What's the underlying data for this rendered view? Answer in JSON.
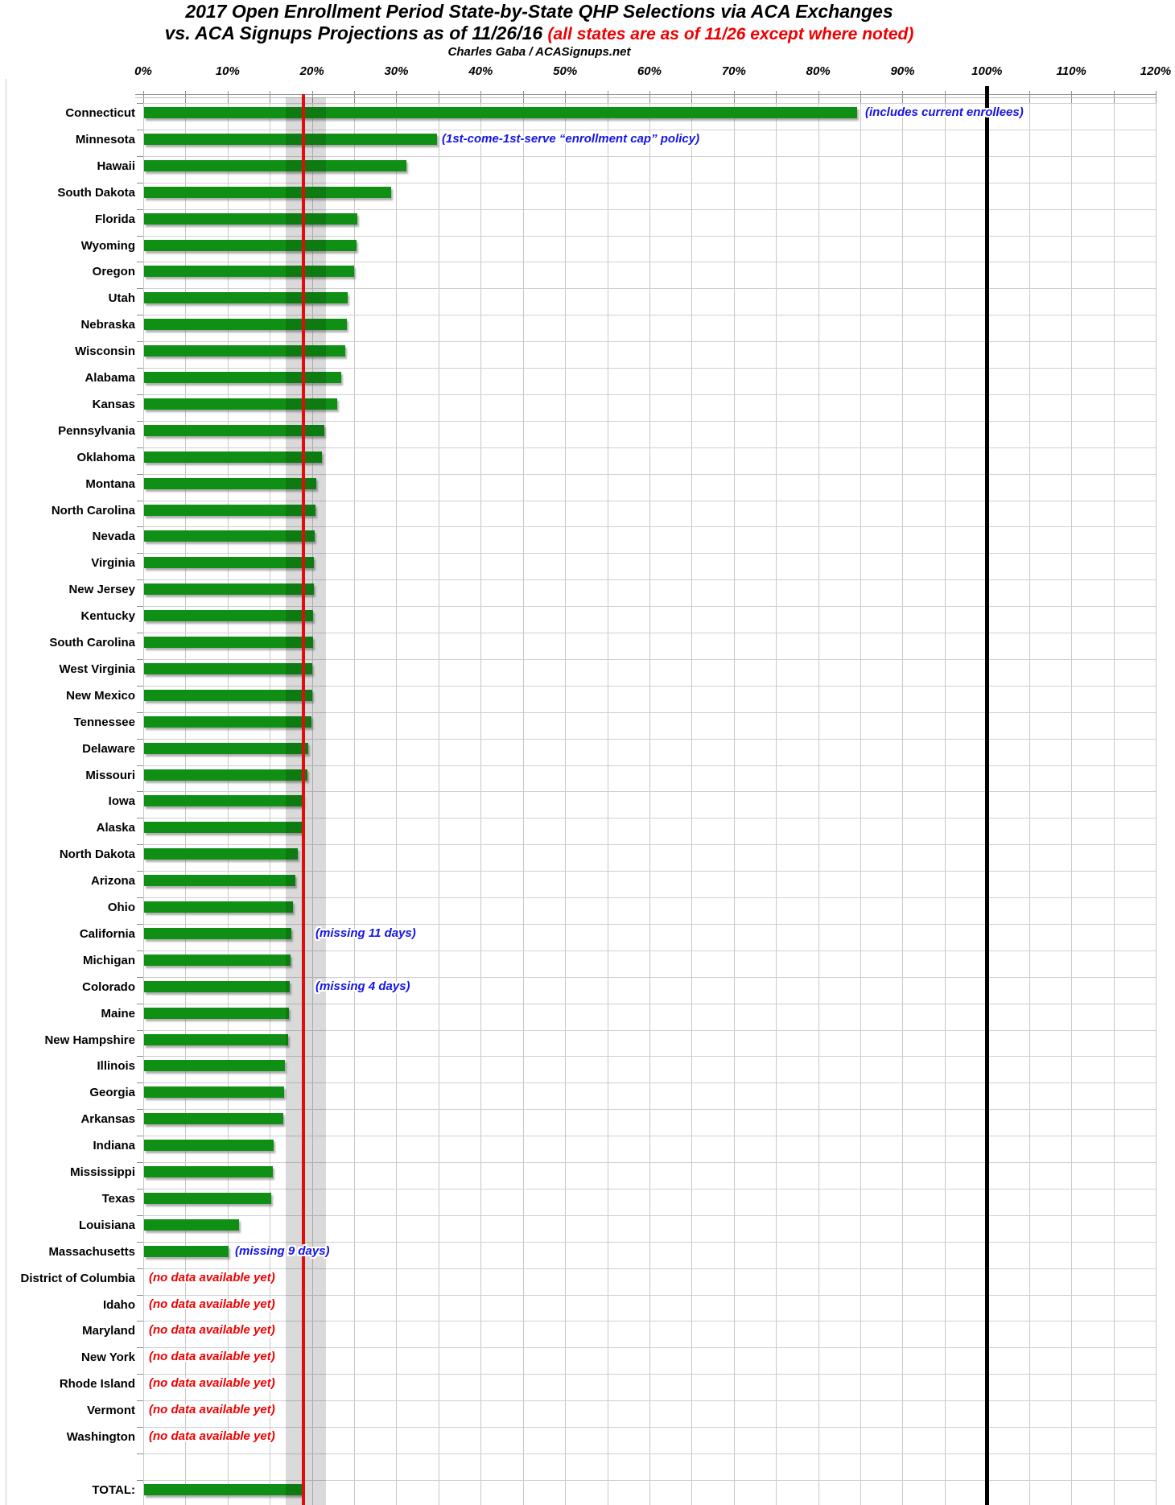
{
  "title": {
    "line1": "2017 Open Enrollment Period State-by-State QHP Selections via ACA Exchanges",
    "line2_black": "vs. ACA Signups Projections as of 11/26/16 ",
    "line2_red": "(all states are as of 11/26 except where noted)",
    "byline": "Charles Gaba / ACASignups.net"
  },
  "axis": {
    "tick_labels": [
      "0%",
      "10%",
      "20%",
      "30%",
      "40%",
      "50%",
      "60%",
      "70%",
      "80%",
      "90%",
      "100%",
      "110%",
      "120%"
    ],
    "min_pct": 0,
    "max_pct": 120,
    "label_step_pct": 10,
    "gridline_step_pct": 5
  },
  "colors": {
    "bar_green": "#0f9014",
    "projection_line_red": "#e00d0d",
    "hundred_line_black": "#000000",
    "band_gray": "#dadada",
    "annotation_blue": "#1414e6",
    "annotation_red": "#ee0000",
    "title_red": "#ee0000",
    "grid_gray": "#c8c8c8"
  },
  "chart_data": {
    "type": "bar",
    "orientation": "horizontal",
    "value_unit": "percent of projection",
    "xlim": [
      0,
      120
    ],
    "grid": true,
    "reference_lines": {
      "projection_average_pct": 19.0,
      "full_projection_pct": 100
    },
    "projection_band_pct": [
      16.9,
      21.7
    ],
    "no_data_text": "(no data available yet)",
    "rows": [
      {
        "state": "Connecticut",
        "pct": 84.5,
        "note": "(includes current enrollees)",
        "note_color": "blue",
        "note_x_pct": 85.6
      },
      {
        "state": "Minnesota",
        "pct": 34.7,
        "note": "(1st-come-1st-serve “enrollment cap” policy)",
        "note_color": "blue",
        "note_x_pct": 35.4
      },
      {
        "state": "Hawaii",
        "pct": 31.1
      },
      {
        "state": "South Dakota",
        "pct": 29.3
      },
      {
        "state": "Florida",
        "pct": 25.3
      },
      {
        "state": "Wyoming",
        "pct": 25.2
      },
      {
        "state": "Oregon",
        "pct": 24.9
      },
      {
        "state": "Utah",
        "pct": 24.1
      },
      {
        "state": "Nebraska",
        "pct": 24.0
      },
      {
        "state": "Wisconsin",
        "pct": 23.8
      },
      {
        "state": "Alabama",
        "pct": 23.4
      },
      {
        "state": "Kansas",
        "pct": 22.9
      },
      {
        "state": "Pennsylvania",
        "pct": 21.4
      },
      {
        "state": "Oklahoma",
        "pct": 21.1
      },
      {
        "state": "Montana",
        "pct": 20.4
      },
      {
        "state": "North Carolina",
        "pct": 20.3
      },
      {
        "state": "Nevada",
        "pct": 20.2
      },
      {
        "state": "Virginia",
        "pct": 20.1
      },
      {
        "state": "New Jersey",
        "pct": 20.1
      },
      {
        "state": "Kentucky",
        "pct": 20.0
      },
      {
        "state": "South Carolina",
        "pct": 20.0
      },
      {
        "state": "West Virginia",
        "pct": 19.9
      },
      {
        "state": "New Mexico",
        "pct": 19.9
      },
      {
        "state": "Tennessee",
        "pct": 19.8
      },
      {
        "state": "Delaware",
        "pct": 19.5
      },
      {
        "state": "Missouri",
        "pct": 19.4
      },
      {
        "state": "Iowa",
        "pct": 18.9
      },
      {
        "state": "Alaska",
        "pct": 18.7
      },
      {
        "state": "North Dakota",
        "pct": 18.2
      },
      {
        "state": "Arizona",
        "pct": 17.9
      },
      {
        "state": "Ohio",
        "pct": 17.6
      },
      {
        "state": "California",
        "pct": 17.5,
        "note": "(missing 11 days)",
        "note_color": "blue",
        "note_x_pct": 20.4
      },
      {
        "state": "Michigan",
        "pct": 17.4
      },
      {
        "state": "Colorado",
        "pct": 17.3,
        "note": "(missing 4 days)",
        "note_color": "blue",
        "note_x_pct": 20.4
      },
      {
        "state": "Maine",
        "pct": 17.2
      },
      {
        "state": "New Hampshire",
        "pct": 17.1
      },
      {
        "state": "Illinois",
        "pct": 16.7
      },
      {
        "state": "Georgia",
        "pct": 16.6
      },
      {
        "state": "Arkansas",
        "pct": 16.5
      },
      {
        "state": "Indiana",
        "pct": 15.4
      },
      {
        "state": "Mississippi",
        "pct": 15.3
      },
      {
        "state": "Texas",
        "pct": 15.1
      },
      {
        "state": "Louisiana",
        "pct": 11.3
      },
      {
        "state": "Massachusetts",
        "pct": 10.0,
        "note": "(missing 9 days)",
        "note_color": "blue",
        "note_x_pct": 10.9
      },
      {
        "state": "District of Columbia",
        "pct": null,
        "note": "(no data available yet)",
        "note_color": "red",
        "note_x_pct": 0.7
      },
      {
        "state": "Idaho",
        "pct": null,
        "note": "(no data available yet)",
        "note_color": "red",
        "note_x_pct": 0.7
      },
      {
        "state": "Maryland",
        "pct": null,
        "note": "(no data available yet)",
        "note_color": "red",
        "note_x_pct": 0.7
      },
      {
        "state": "New York",
        "pct": null,
        "note": "(no data available yet)",
        "note_color": "red",
        "note_x_pct": 0.7
      },
      {
        "state": "Rhode Island",
        "pct": null,
        "note": "(no data available yet)",
        "note_color": "red",
        "note_x_pct": 0.7
      },
      {
        "state": "Vermont",
        "pct": null,
        "note": "(no data available yet)",
        "note_color": "red",
        "note_x_pct": 0.7
      },
      {
        "state": "Washington",
        "pct": null,
        "note": "(no data available yet)",
        "note_color": "red",
        "note_x_pct": 0.7
      }
    ],
    "total_row": {
      "label": "TOTAL:",
      "pct": 18.7
    }
  }
}
